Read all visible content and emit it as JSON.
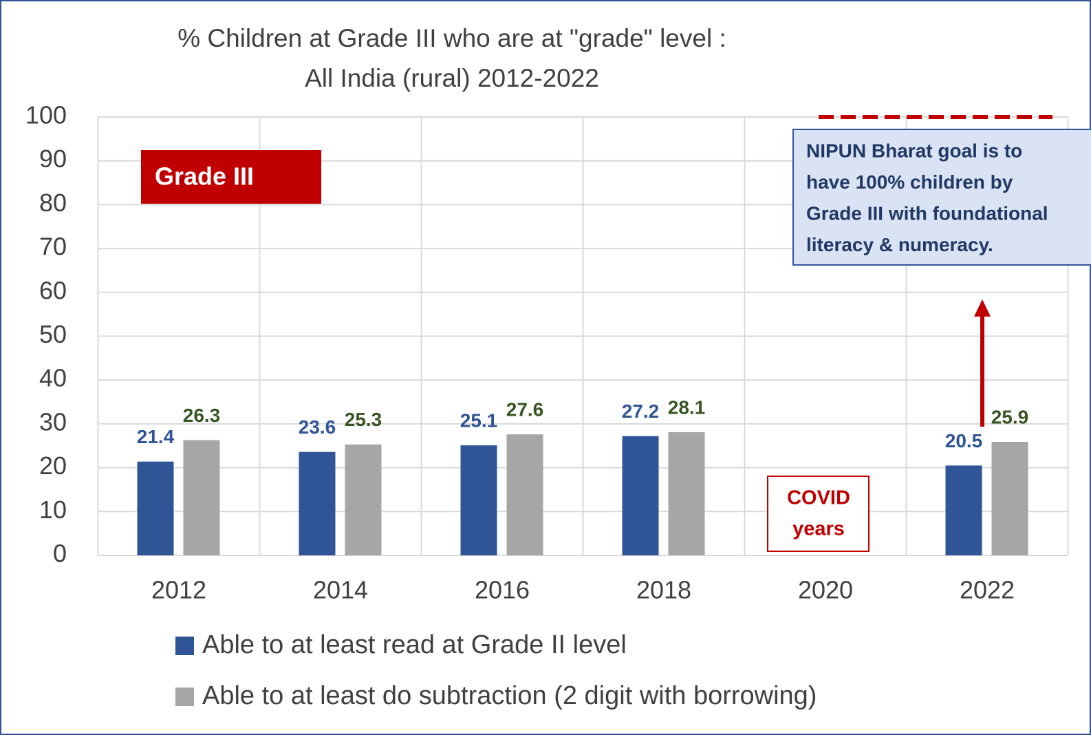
{
  "chart_data": {
    "type": "bar",
    "title": [
      "% Children at Grade III who are at \"grade\" level :",
      "All India (rural) 2012-2022"
    ],
    "categories": [
      "2012",
      "2014",
      "2016",
      "2018",
      "2020",
      "2022"
    ],
    "series": [
      {
        "name": "Able to at least read at Grade II level",
        "color": "#2f5597",
        "label_color": "#2f5597",
        "values": [
          21.4,
          23.6,
          25.1,
          27.2,
          null,
          20.5
        ]
      },
      {
        "name": "Able to at least do subtraction (2 digit with borrowing)",
        "color": "#a6a6a6",
        "label_color": "#375623",
        "values": [
          26.3,
          25.3,
          27.6,
          28.1,
          null,
          25.9
        ]
      }
    ],
    "ylim": [
      0,
      100
    ],
    "yticks": [
      0,
      10,
      20,
      30,
      40,
      50,
      60,
      70,
      80,
      90,
      100
    ],
    "grid": true,
    "annotations": {
      "grade": "Grade III",
      "covid": [
        "COVID",
        "years"
      ],
      "goal": [
        "NIPUN Bharat goal is to",
        "have 100% children by",
        "Grade III with foundational",
        "literacy & numeracy."
      ]
    }
  }
}
